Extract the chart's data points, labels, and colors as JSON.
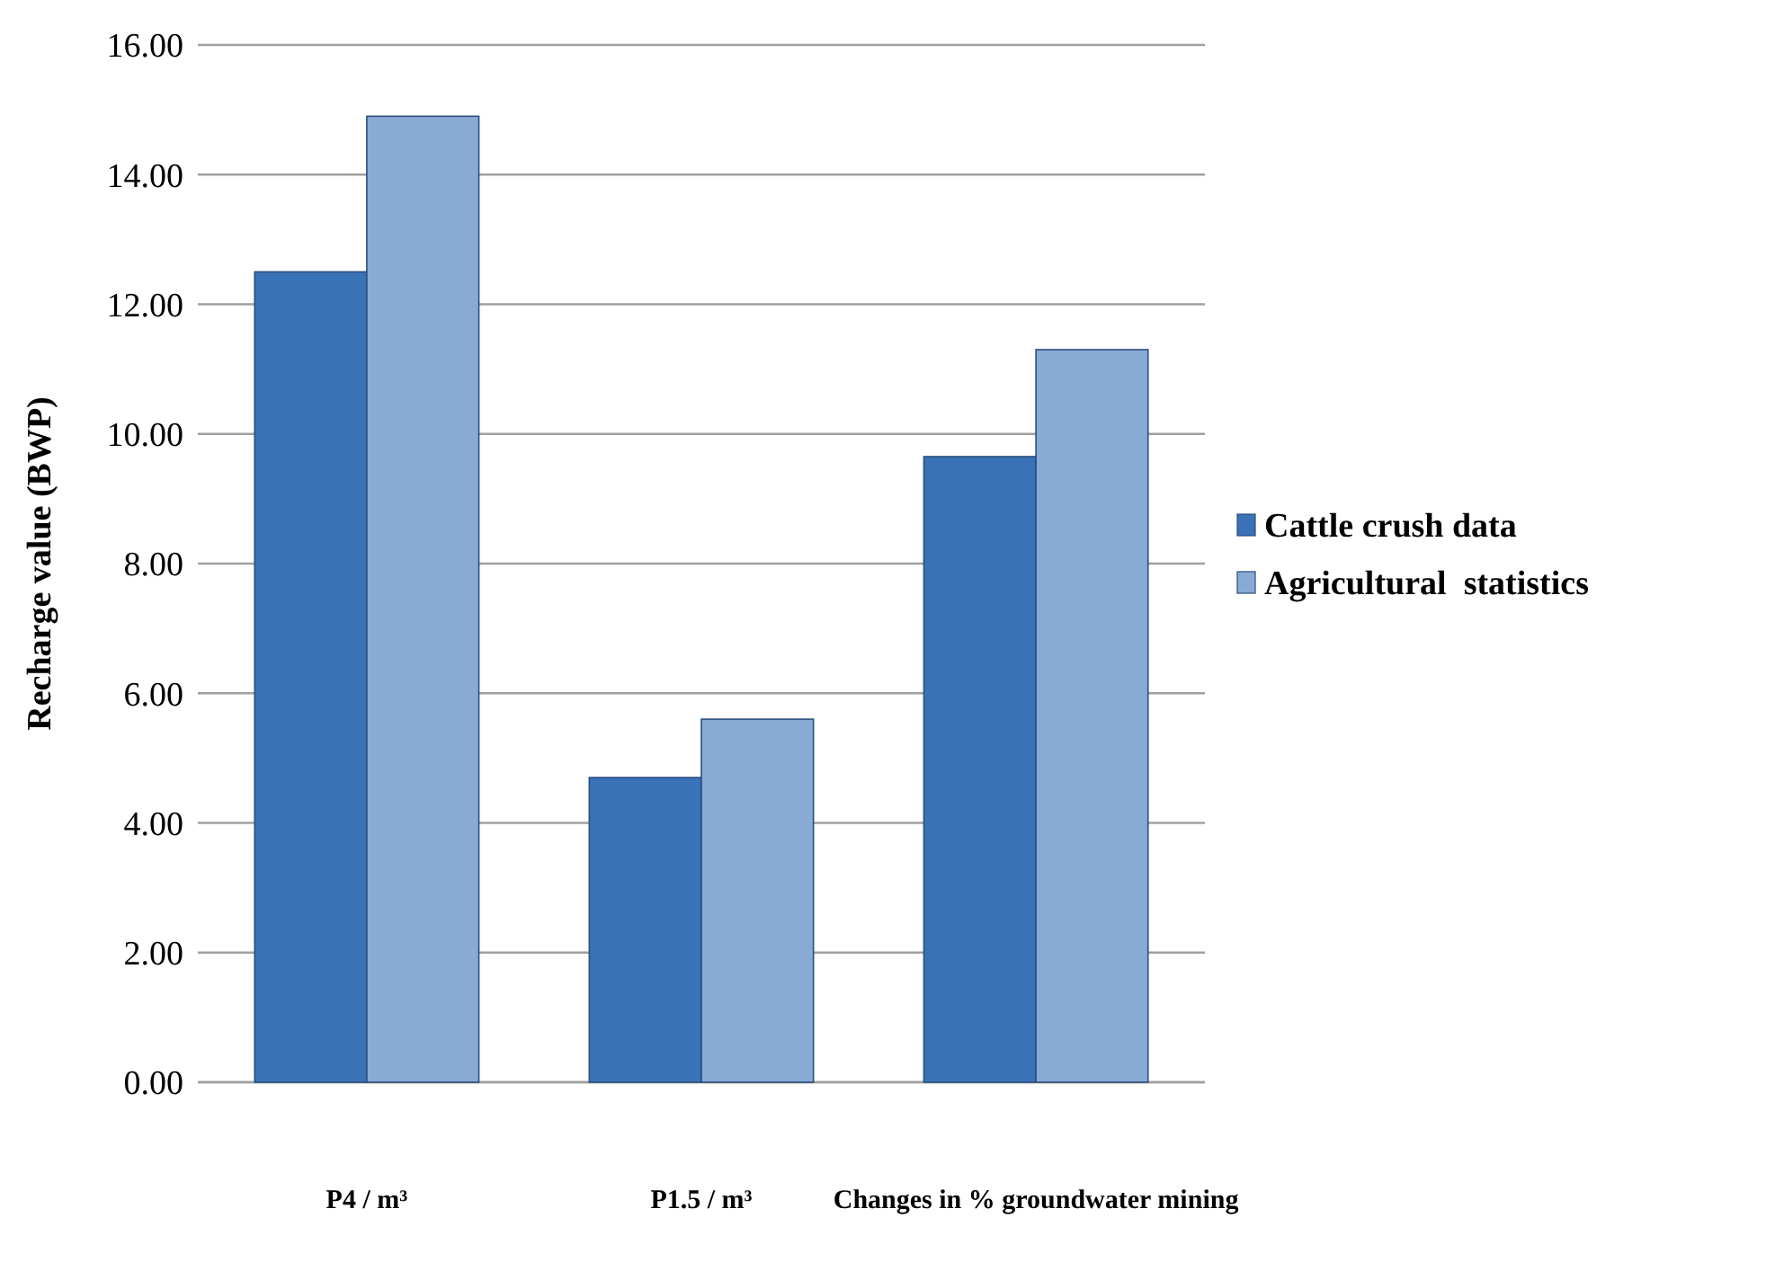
{
  "chart_data": {
    "type": "bar",
    "ylabel": "Recharge value (BWP)",
    "categories": [
      "P4 / m³",
      "P1.5 / m³",
      "Changes in % groundwater mining"
    ],
    "series": [
      {
        "name": "Cattle crush data",
        "color": "#3a72b8",
        "values": [
          12.5,
          4.7,
          9.65
        ]
      },
      {
        "name": "Agricultural  statistics",
        "color": "#8aaad6",
        "values": [
          14.9,
          5.6,
          11.3
        ]
      }
    ],
    "ylim": [
      0,
      16
    ],
    "yticks": [
      {
        "value": 0,
        "label": "0.00"
      },
      {
        "value": 2,
        "label": "2.00"
      },
      {
        "value": 4,
        "label": "4.00"
      },
      {
        "value": 6,
        "label": "6.00"
      },
      {
        "value": 8,
        "label": "8.00"
      },
      {
        "value": 10,
        "label": "10.00"
      },
      {
        "value": 12,
        "label": "12.00"
      },
      {
        "value": 14,
        "label": "14.00"
      },
      {
        "value": 16,
        "label": "16.00"
      }
    ],
    "grid": "y",
    "legend": "right"
  }
}
